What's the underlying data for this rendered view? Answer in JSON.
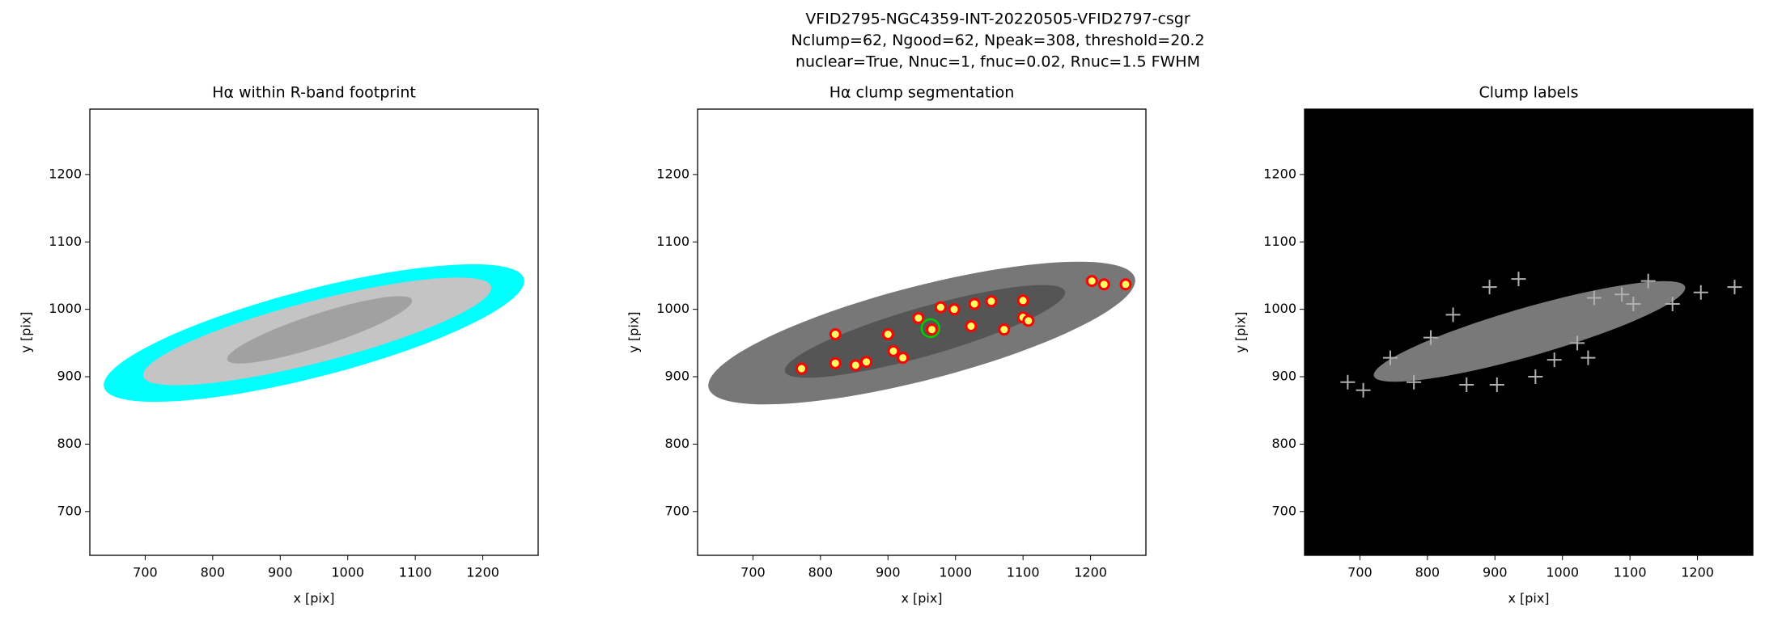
{
  "title": [
    "VFID2795-NGC4359-INT-20220505-VFID2797-csgr",
    "Nclump=62, Ngood=62, Npeak=308, threshold=20.2",
    "nuclear=True, Nnuc=1, fnuc=0.02, Rnuc=1.5 FWHM"
  ],
  "chart_data": [
    {
      "type": "image",
      "title": "Hα within R-band footprint",
      "xlabel": "x [pix]",
      "ylabel": "y [pix]",
      "xlim": [
        618,
        1282
      ],
      "ylim": [
        635,
        1297
      ],
      "xticks": [
        700,
        800,
        900,
        1000,
        1100,
        1200
      ],
      "yticks": [
        700,
        800,
        900,
        1000,
        1100,
        1200
      ]
    },
    {
      "type": "scatter",
      "title": "Hα clump segmentation",
      "xlabel": "x [pix]",
      "ylabel": "y [pix]",
      "xlim": [
        618,
        1282
      ],
      "ylim": [
        635,
        1297
      ],
      "xticks": [
        700,
        800,
        900,
        1000,
        1100,
        1200
      ],
      "yticks": [
        700,
        800,
        900,
        1000,
        1100,
        1200
      ],
      "series": [
        {
          "color": "#ff0000",
          "marker": "circle",
          "x": [
            772,
            822,
            868,
            908,
            900,
            945,
            965,
            998,
            1028,
            1023,
            1053,
            1072,
            1100,
            1108,
            1100,
            1202,
            1220,
            1252,
            822,
            852,
            922,
            978
          ],
          "values": [
            912,
            920,
            922,
            938,
            963,
            987,
            970,
            1000,
            1008,
            975,
            1012,
            970,
            988,
            983,
            1013,
            1042,
            1037,
            1037,
            963,
            917,
            928,
            1003
          ]
        },
        {
          "color": "#00cc00",
          "marker": "ring",
          "x": [
            963
          ],
          "values": [
            972
          ]
        }
      ]
    },
    {
      "type": "scatter",
      "title": "Clump labels",
      "xlabel": "x [pix]",
      "ylabel": "y [pix]",
      "xlim": [
        618,
        1282
      ],
      "ylim": [
        635,
        1297
      ],
      "xticks": [
        700,
        800,
        900,
        1000,
        1100,
        1200
      ],
      "yticks": [
        700,
        800,
        900,
        1000,
        1100,
        1200
      ],
      "series": [
        {
          "color": "#b0b0b0",
          "marker": "plus",
          "x": [
            682,
            705,
            745,
            780,
            858,
            903,
            960,
            988,
            1038,
            1022,
            1105,
            1127,
            1163,
            1205,
            1255,
            935,
            892,
            805,
            838,
            1047,
            1088
          ],
          "values": [
            892,
            880,
            928,
            892,
            888,
            888,
            900,
            925,
            928,
            950,
            1008,
            1042,
            1008,
            1025,
            1033,
            1045,
            1033,
            958,
            992,
            1017,
            1022
          ]
        }
      ]
    }
  ]
}
